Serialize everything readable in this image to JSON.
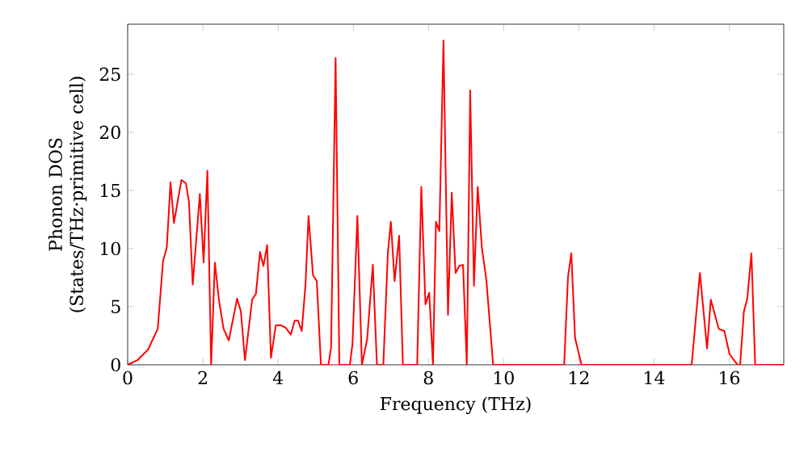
{
  "chart_data": {
    "type": "line",
    "xlabel": "Frequency (THz)",
    "ylabel": "Phonon DOS (States/THz·primitive cell)",
    "xlim": [
      0,
      17.45
    ],
    "ylim": [
      0,
      29.3
    ],
    "xticks": [
      0,
      2,
      4,
      6,
      8,
      10,
      12,
      14,
      16
    ],
    "yticks": [
      0,
      5,
      10,
      15,
      20,
      25
    ],
    "series": [
      {
        "color": "#ff0000",
        "x": [
          0,
          0.26,
          0.54,
          0.8,
          0.94,
          1.04,
          1.14,
          1.23,
          1.43,
          1.55,
          1.63,
          1.73,
          1.92,
          2.02,
          2.12,
          2.22,
          2.32,
          2.43,
          2.55,
          2.69,
          2.91,
          3.01,
          3.12,
          3.31,
          3.41,
          3.52,
          3.61,
          3.71,
          3.81,
          3.94,
          4.07,
          4.2,
          4.34,
          4.44,
          4.53,
          4.63,
          4.73,
          4.81,
          4.93,
          5.03,
          5.14,
          5.34,
          5.41,
          5.53,
          5.63,
          5.91,
          5.98,
          6.11,
          6.23,
          6.37,
          6.52,
          6.63,
          6.8,
          6.92,
          7.0,
          7.1,
          7.22,
          7.32,
          7.7,
          7.81,
          7.92,
          8.02,
          8.12,
          8.2,
          8.29,
          8.4,
          8.52,
          8.62,
          8.72,
          8.82,
          8.92,
          9.02,
          9.11,
          9.21,
          9.31,
          9.42,
          9.54,
          9.72,
          11.61,
          11.71,
          11.8,
          11.9,
          12.07,
          15.0,
          15.22,
          15.41,
          15.51,
          15.72,
          15.87,
          16.01,
          16.22,
          16.29,
          16.39,
          16.48,
          16.59,
          16.69,
          17.45
        ],
        "values": [
          0,
          0.4,
          1.3,
          3.1,
          8.9,
          10.1,
          15.7,
          12.2,
          15.9,
          15.6,
          14,
          6.9,
          14.7,
          8.8,
          16.7,
          0,
          8.8,
          5.5,
          3.1,
          2.1,
          5.7,
          4.6,
          0.4,
          5.6,
          6.1,
          9.7,
          8.5,
          10.3,
          0.6,
          3.4,
          3.4,
          3.2,
          2.6,
          3.8,
          3.8,
          2.9,
          6.9,
          12.8,
          7.7,
          7.2,
          0,
          0,
          1.5,
          26.4,
          0,
          0,
          1.8,
          12.8,
          0,
          2.2,
          8.6,
          0,
          0,
          9.6,
          12.3,
          7.2,
          11.1,
          0,
          0,
          15.3,
          5.2,
          6.2,
          0,
          12.3,
          11.5,
          27.9,
          4.3,
          14.8,
          7.9,
          8.5,
          8.6,
          0,
          23.6,
          6.8,
          15.3,
          10.1,
          7.3,
          0,
          0,
          7.5,
          9.6,
          2.3,
          0,
          0,
          7.9,
          1.4,
          5.6,
          3.1,
          2.9,
          0.9,
          0,
          0,
          4.6,
          5.7,
          9.6,
          0,
          0
        ]
      }
    ]
  }
}
